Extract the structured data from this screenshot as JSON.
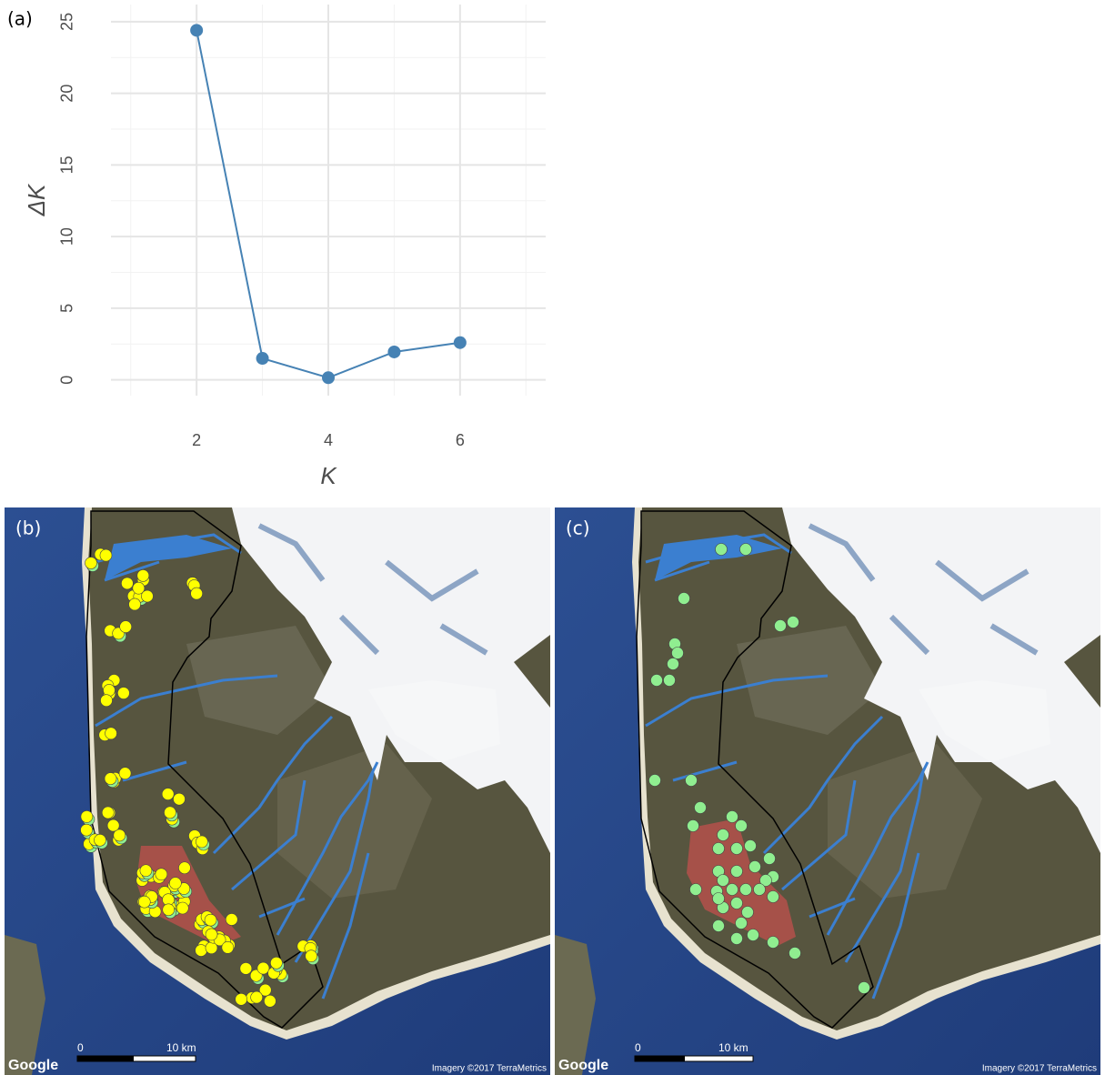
{
  "chart_data": {
    "type": "line",
    "panel_label": "(a)",
    "x": [
      2,
      3,
      4,
      5,
      6
    ],
    "values": [
      24.4,
      1.5,
      0.15,
      1.95,
      2.6
    ],
    "color": "#4682b4",
    "xlabel": "K",
    "ylabel": "ΔK",
    "xlim": [
      0.7,
      7.3
    ],
    "ylim": [
      -1.1,
      26.2
    ],
    "xticks": [
      2,
      4,
      6
    ],
    "yticks": [
      0,
      5,
      10,
      15,
      20,
      25
    ],
    "x_minor_ticks": [
      1,
      3,
      5,
      7
    ],
    "y_minor_ticks": [
      2.5,
      7.5,
      12.5,
      17.5,
      22.5
    ],
    "grid": true
  },
  "maps": [
    {
      "panel_label": "(b)",
      "attribution": "Google",
      "scale_start": "0",
      "scale_end": "10 km",
      "imagery": "Imagery ©2017 TerraMetrics"
    },
    {
      "panel_label": "(c)",
      "attribution": "Google",
      "scale_start": "0",
      "scale_end": "10 km",
      "imagery": "Imagery ©2017 TerraMetrics"
    }
  ]
}
